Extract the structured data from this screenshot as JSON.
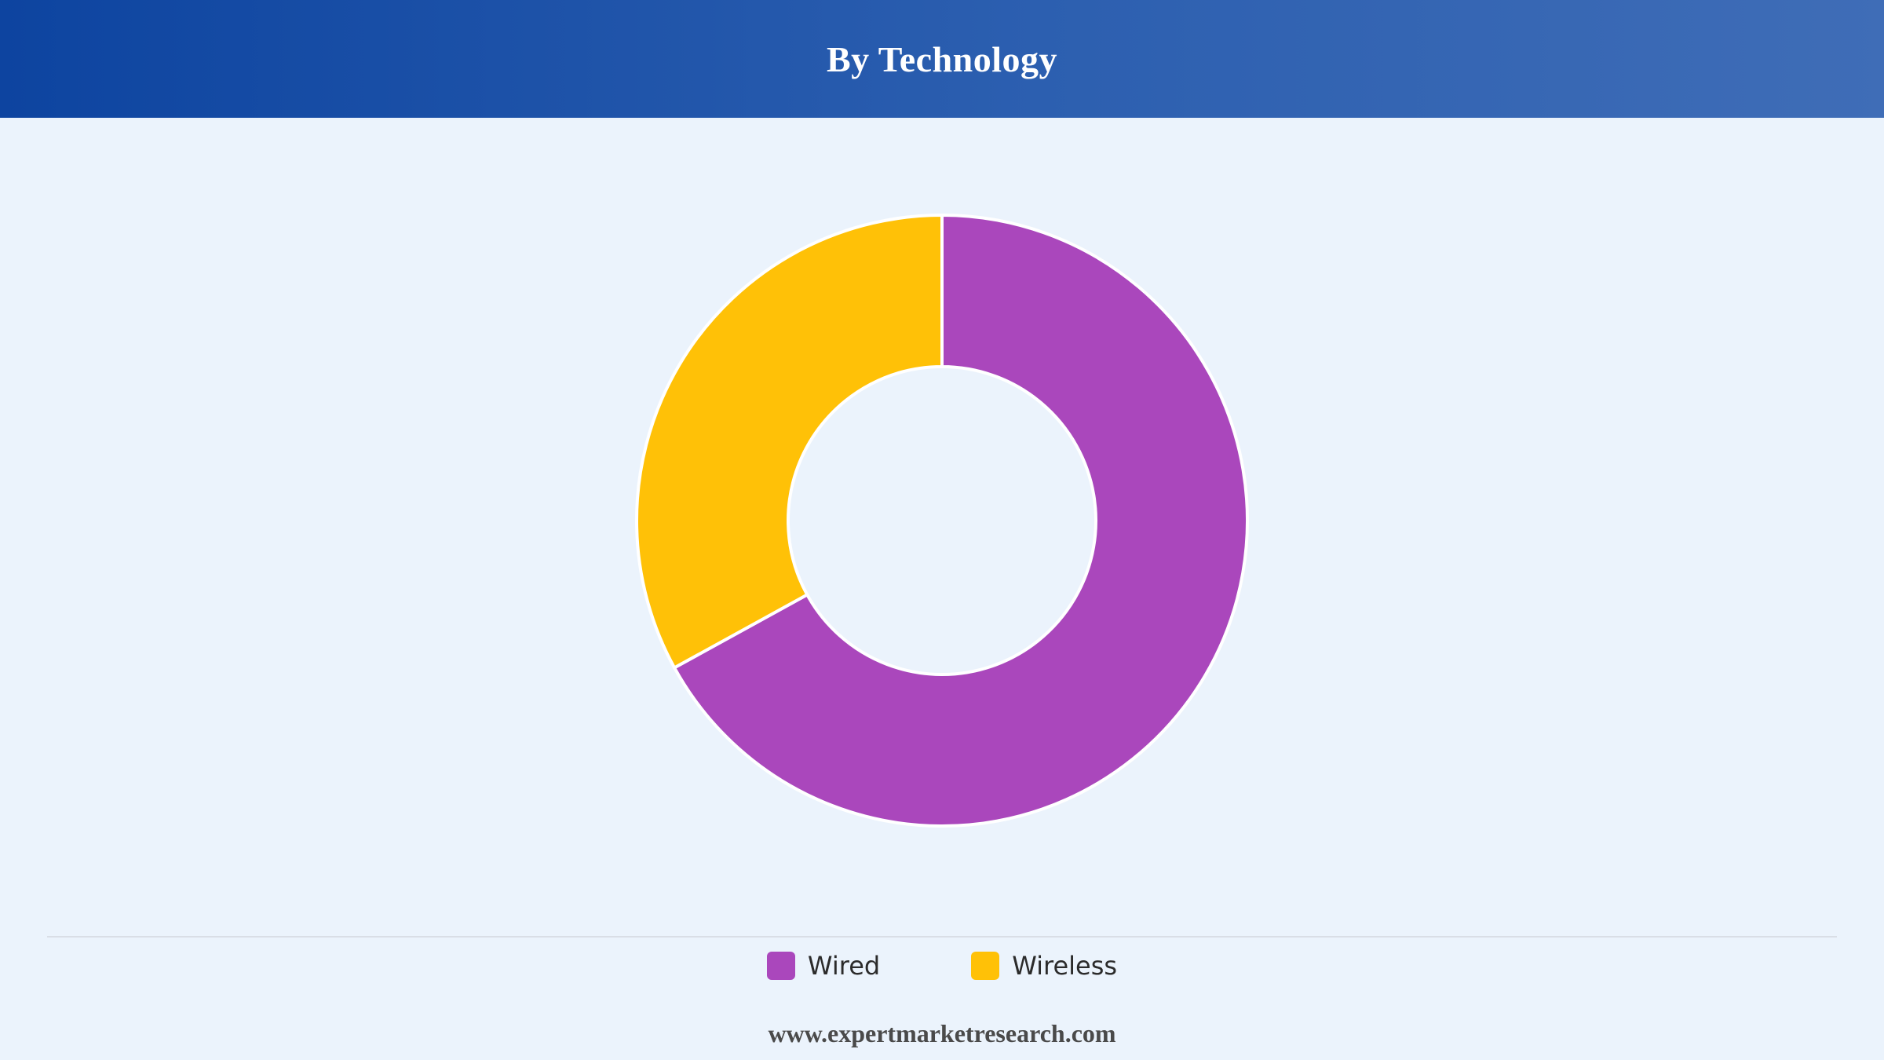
{
  "header": {
    "title": "By Technology"
  },
  "chart_data": {
    "type": "pie",
    "style": "donut",
    "title": "By Technology",
    "categories": [
      "Wired",
      "Wireless"
    ],
    "values": [
      67,
      33
    ],
    "colors": [
      "#aa47bc",
      "#ffc107"
    ],
    "start_angle": "top",
    "direction": "clockwise",
    "legend_position": "bottom-center"
  },
  "legend": {
    "items": [
      {
        "label": "Wired",
        "color": "#aa47bc"
      },
      {
        "label": "Wireless",
        "color": "#ffc107"
      }
    ]
  },
  "footer": {
    "source": "www.expertmarketresearch.com"
  }
}
